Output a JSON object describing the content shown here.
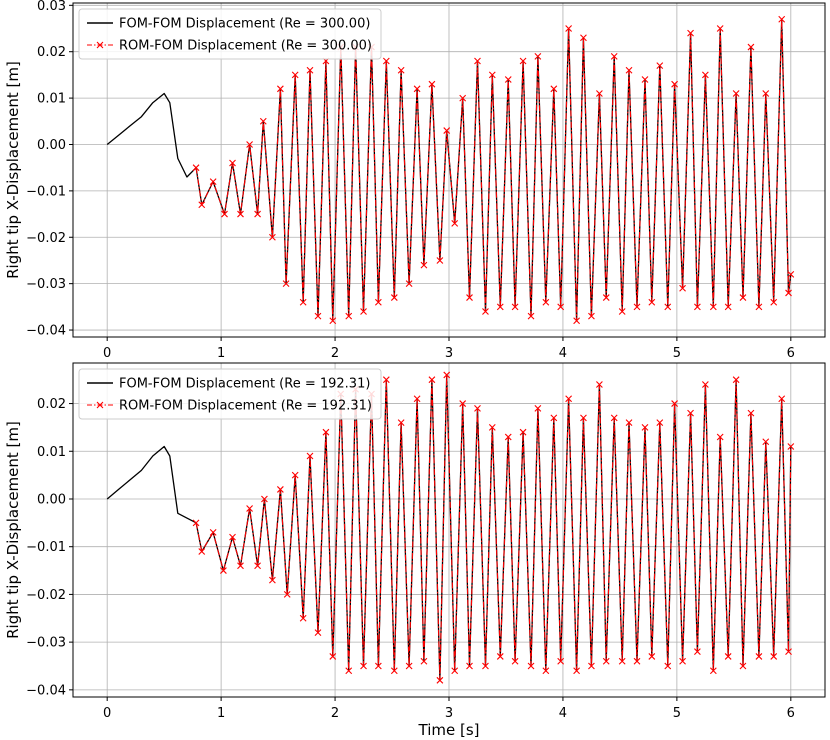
{
  "chart_data": [
    {
      "type": "line",
      "ylabel": "Right tip X-Displacement [m]",
      "xlabel": "",
      "xlim": [
        -0.3,
        6.3
      ],
      "ylim": [
        -0.0415,
        0.0305
      ],
      "xticks": [
        0,
        1,
        2,
        3,
        4,
        5,
        6
      ],
      "xtick_labels": [
        "0",
        "1",
        "2",
        "3",
        "4",
        "5",
        "6"
      ],
      "yticks": [
        -0.04,
        -0.03,
        -0.02,
        -0.01,
        0.0,
        0.01,
        0.02,
        0.03
      ],
      "ytick_labels": [
        "−0.04",
        "−0.03",
        "−0.02",
        "−0.01",
        "0.00",
        "0.01",
        "0.02",
        "0.03"
      ],
      "grid": true,
      "legend_position": "upper-left",
      "series": [
        {
          "name": "FOM-FOM Displacement (Re = 300.00)",
          "color": "#000000",
          "style": "solid"
        },
        {
          "name": "ROM-FOM Displacement (Re = 300.00)",
          "color": "#ff0000",
          "style": "dashdot",
          "marker": "x"
        }
      ],
      "x": [
        0.0,
        0.1,
        0.2,
        0.3,
        0.4,
        0.5,
        0.55,
        0.62,
        0.7,
        0.78,
        0.83,
        0.93,
        1.03,
        1.1,
        1.17,
        1.25,
        1.32,
        1.37,
        1.45,
        1.52,
        1.57,
        1.65,
        1.72,
        1.78,
        1.85,
        1.92,
        1.98,
        2.05,
        2.12,
        2.18,
        2.25,
        2.32,
        2.38,
        2.45,
        2.52,
        2.58,
        2.65,
        2.72,
        2.78,
        2.85,
        2.92,
        2.98,
        3.05,
        3.12,
        3.18,
        3.25,
        3.32,
        3.38,
        3.45,
        3.52,
        3.58,
        3.65,
        3.72,
        3.78,
        3.85,
        3.92,
        3.98,
        4.05,
        4.12,
        4.18,
        4.25,
        4.32,
        4.38,
        4.45,
        4.52,
        4.58,
        4.65,
        4.72,
        4.78,
        4.85,
        4.92,
        4.98,
        5.05,
        5.12,
        5.18,
        5.25,
        5.32,
        5.38,
        5.45,
        5.52,
        5.58,
        5.65,
        5.72,
        5.78,
        5.85,
        5.92,
        5.98,
        6.0
      ],
      "y": [
        0.0,
        0.002,
        0.004,
        0.006,
        0.009,
        0.011,
        0.009,
        -0.003,
        -0.007,
        -0.005,
        -0.013,
        -0.008,
        -0.015,
        -0.004,
        -0.015,
        0.0,
        -0.015,
        0.005,
        -0.02,
        0.012,
        -0.03,
        0.015,
        -0.034,
        0.016,
        -0.037,
        0.018,
        -0.038,
        0.021,
        -0.037,
        0.021,
        -0.036,
        0.021,
        -0.034,
        0.018,
        -0.033,
        0.016,
        -0.03,
        0.012,
        -0.026,
        0.013,
        -0.025,
        0.003,
        -0.017,
        0.01,
        -0.033,
        0.018,
        -0.036,
        0.015,
        -0.035,
        0.014,
        -0.035,
        0.018,
        -0.037,
        0.019,
        -0.034,
        0.012,
        -0.035,
        0.025,
        -0.038,
        0.023,
        -0.037,
        0.011,
        -0.033,
        0.019,
        -0.036,
        0.016,
        -0.035,
        0.014,
        -0.034,
        0.017,
        -0.035,
        0.013,
        -0.031,
        0.024,
        -0.035,
        0.015,
        -0.035,
        0.025,
        -0.035,
        0.011,
        -0.033,
        0.021,
        -0.035,
        0.011,
        -0.034,
        0.027,
        -0.032,
        -0.028
      ]
    },
    {
      "type": "line",
      "ylabel": "Right tip X-Displacement [m]",
      "xlabel": "Time [s]",
      "xlim": [
        -0.3,
        6.3
      ],
      "ylim": [
        -0.0415,
        0.0285
      ],
      "xticks": [
        0,
        1,
        2,
        3,
        4,
        5,
        6
      ],
      "xtick_labels": [
        "0",
        "1",
        "2",
        "3",
        "4",
        "5",
        "6"
      ],
      "yticks": [
        -0.04,
        -0.03,
        -0.02,
        -0.01,
        0.0,
        0.01,
        0.02
      ],
      "ytick_labels": [
        "−0.04",
        "−0.03",
        "−0.02",
        "−0.01",
        "0.00",
        "0.01",
        "0.02"
      ],
      "grid": true,
      "legend_position": "upper-left",
      "series": [
        {
          "name": "FOM-FOM Displacement (Re = 192.31)",
          "color": "#000000",
          "style": "solid"
        },
        {
          "name": "ROM-FOM Displacement (Re = 192.31)",
          "color": "#ff0000",
          "style": "dashdot",
          "marker": "x"
        }
      ],
      "x": [
        0.0,
        0.1,
        0.2,
        0.3,
        0.4,
        0.5,
        0.55,
        0.62,
        0.7,
        0.78,
        0.83,
        0.93,
        1.02,
        1.1,
        1.17,
        1.25,
        1.32,
        1.38,
        1.45,
        1.52,
        1.58,
        1.65,
        1.72,
        1.78,
        1.85,
        1.92,
        1.98,
        2.05,
        2.12,
        2.18,
        2.25,
        2.32,
        2.38,
        2.45,
        2.52,
        2.58,
        2.65,
        2.72,
        2.78,
        2.85,
        2.92,
        2.98,
        3.05,
        3.12,
        3.18,
        3.25,
        3.32,
        3.38,
        3.45,
        3.52,
        3.58,
        3.65,
        3.72,
        3.78,
        3.85,
        3.92,
        3.98,
        4.05,
        4.12,
        4.18,
        4.25,
        4.32,
        4.38,
        4.45,
        4.52,
        4.58,
        4.65,
        4.72,
        4.78,
        4.85,
        4.92,
        4.98,
        5.05,
        5.12,
        5.18,
        5.25,
        5.32,
        5.38,
        5.45,
        5.52,
        5.58,
        5.65,
        5.72,
        5.78,
        5.85,
        5.92,
        5.98,
        6.0
      ],
      "y": [
        0.0,
        0.002,
        0.004,
        0.006,
        0.009,
        0.011,
        0.009,
        -0.003,
        -0.004,
        -0.005,
        -0.011,
        -0.007,
        -0.015,
        -0.008,
        -0.014,
        -0.002,
        -0.014,
        0.0,
        -0.017,
        0.002,
        -0.02,
        0.005,
        -0.025,
        0.009,
        -0.028,
        0.014,
        -0.033,
        0.022,
        -0.036,
        0.023,
        -0.035,
        0.022,
        -0.035,
        0.025,
        -0.036,
        0.016,
        -0.035,
        0.021,
        -0.034,
        0.025,
        -0.038,
        0.026,
        -0.036,
        0.02,
        -0.035,
        0.019,
        -0.035,
        0.015,
        -0.033,
        0.013,
        -0.034,
        0.014,
        -0.035,
        0.019,
        -0.036,
        0.017,
        -0.034,
        0.021,
        -0.036,
        0.017,
        -0.035,
        0.024,
        -0.034,
        0.017,
        -0.034,
        0.016,
        -0.034,
        0.015,
        -0.033,
        0.016,
        -0.035,
        0.02,
        -0.034,
        0.018,
        -0.032,
        0.024,
        -0.036,
        0.013,
        -0.033,
        0.025,
        -0.035,
        0.018,
        -0.033,
        0.012,
        -0.033,
        0.021,
        -0.032,
        0.011
      ]
    }
  ]
}
